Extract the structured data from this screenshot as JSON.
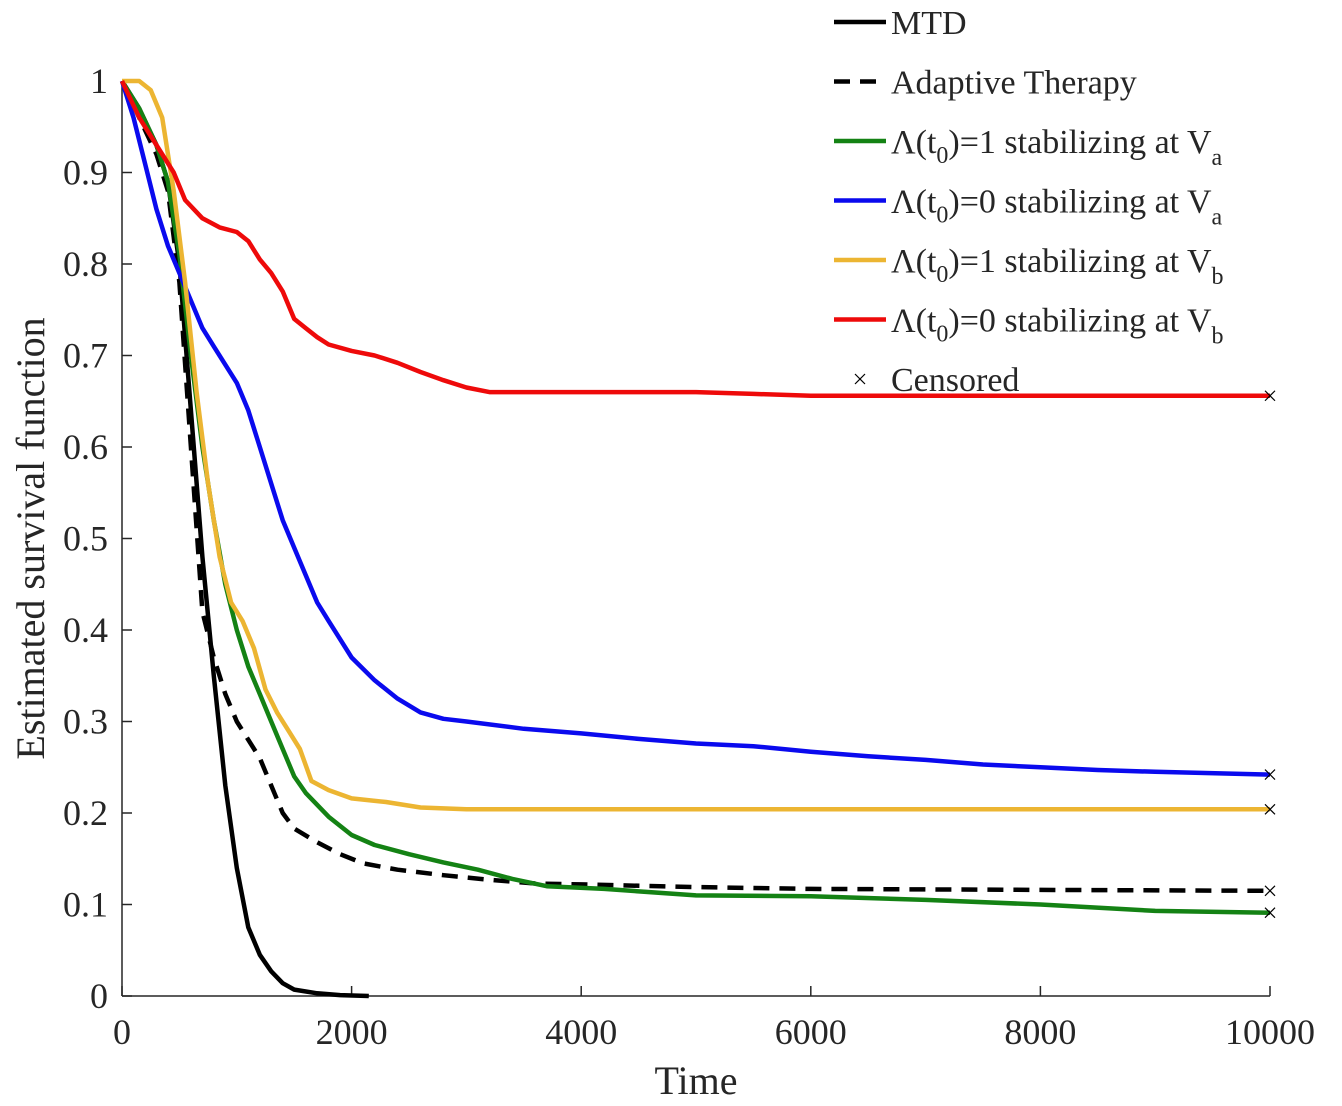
{
  "chart_data": {
    "type": "line",
    "xlabel": "Time",
    "ylabel": "Estimated survival function",
    "xlim": [
      0,
      10000
    ],
    "ylim": [
      0,
      1
    ],
    "xticks": [
      0,
      2000,
      4000,
      6000,
      8000,
      10000
    ],
    "xtick_labels": [
      "0",
      "2000",
      "4000",
      "6000",
      "8000",
      "10000"
    ],
    "yticks": [
      0,
      0.1,
      0.2,
      0.3,
      0.4,
      0.5,
      0.6,
      0.7,
      0.8,
      0.9,
      1
    ],
    "ytick_labels": [
      "0",
      "0.1",
      "0.2",
      "0.3",
      "0.4",
      "0.5",
      "0.6",
      "0.7",
      "0.8",
      "0.9",
      "1"
    ],
    "grid": false,
    "legend_position": "top-right",
    "series": [
      {
        "name": "MTD",
        "legend": {
          "pre": "MTD"
        },
        "color": "#000000",
        "dash": "solid",
        "points": [
          [
            0,
            1.0
          ],
          [
            150,
            0.97
          ],
          [
            300,
            0.93
          ],
          [
            400,
            0.89
          ],
          [
            500,
            0.8
          ],
          [
            600,
            0.64
          ],
          [
            700,
            0.48
          ],
          [
            800,
            0.35
          ],
          [
            900,
            0.23
          ],
          [
            1000,
            0.14
          ],
          [
            1100,
            0.075
          ],
          [
            1200,
            0.045
          ],
          [
            1300,
            0.027
          ],
          [
            1400,
            0.014
          ],
          [
            1500,
            0.007
          ],
          [
            1700,
            0.003
          ],
          [
            1900,
            0.001
          ],
          [
            2150,
            0.0
          ]
        ],
        "censored": false
      },
      {
        "name": "Adaptive Therapy",
        "legend": {
          "pre": "Adaptive Therapy"
        },
        "color": "#000000",
        "dash": "dashed",
        "points": [
          [
            0,
            1.0
          ],
          [
            150,
            0.96
          ],
          [
            300,
            0.92
          ],
          [
            400,
            0.88
          ],
          [
            500,
            0.78
          ],
          [
            600,
            0.6
          ],
          [
            700,
            0.42
          ],
          [
            800,
            0.37
          ],
          [
            900,
            0.33
          ],
          [
            1000,
            0.3
          ],
          [
            1100,
            0.28
          ],
          [
            1200,
            0.26
          ],
          [
            1300,
            0.23
          ],
          [
            1400,
            0.2
          ],
          [
            1500,
            0.183
          ],
          [
            1700,
            0.168
          ],
          [
            1900,
            0.155
          ],
          [
            2100,
            0.145
          ],
          [
            2400,
            0.138
          ],
          [
            2800,
            0.132
          ],
          [
            3200,
            0.127
          ],
          [
            3600,
            0.123
          ],
          [
            4000,
            0.122
          ],
          [
            5000,
            0.119
          ],
          [
            6000,
            0.117
          ],
          [
            8000,
            0.116
          ],
          [
            10000,
            0.115
          ]
        ],
        "censored": true
      },
      {
        "name": "Λ(t0)=1 stabilizing at Va",
        "legend": {
          "pre": "Λ(t",
          "sub1": "0",
          "mid": ")=1 stabilizing at V",
          "sub2": "a"
        },
        "color": "#148214",
        "dash": "solid",
        "points": [
          [
            0,
            1.0
          ],
          [
            150,
            0.97
          ],
          [
            300,
            0.93
          ],
          [
            400,
            0.89
          ],
          [
            500,
            0.81
          ],
          [
            600,
            0.7
          ],
          [
            700,
            0.6
          ],
          [
            800,
            0.52
          ],
          [
            900,
            0.45
          ],
          [
            1000,
            0.4
          ],
          [
            1100,
            0.36
          ],
          [
            1200,
            0.33
          ],
          [
            1300,
            0.3
          ],
          [
            1400,
            0.27
          ],
          [
            1500,
            0.24
          ],
          [
            1600,
            0.222
          ],
          [
            1800,
            0.196
          ],
          [
            2000,
            0.176
          ],
          [
            2200,
            0.165
          ],
          [
            2500,
            0.155
          ],
          [
            2800,
            0.146
          ],
          [
            3100,
            0.138
          ],
          [
            3400,
            0.128
          ],
          [
            3700,
            0.12
          ],
          [
            4200,
            0.117
          ],
          [
            5000,
            0.11
          ],
          [
            6000,
            0.109
          ],
          [
            7000,
            0.105
          ],
          [
            8000,
            0.1
          ],
          [
            9000,
            0.093
          ],
          [
            10000,
            0.091
          ]
        ],
        "censored": true
      },
      {
        "name": "Λ(t0)=0 stabilizing at Va",
        "legend": {
          "pre": "Λ(t",
          "sub1": "0",
          "mid": ")=0 stabilizing at V",
          "sub2": "a"
        },
        "color": "#0a0aee",
        "dash": "solid",
        "points": [
          [
            0,
            1.0
          ],
          [
            100,
            0.96
          ],
          [
            200,
            0.91
          ],
          [
            300,
            0.86
          ],
          [
            400,
            0.82
          ],
          [
            500,
            0.79
          ],
          [
            600,
            0.76
          ],
          [
            700,
            0.73
          ],
          [
            800,
            0.71
          ],
          [
            900,
            0.69
          ],
          [
            1000,
            0.67
          ],
          [
            1100,
            0.64
          ],
          [
            1200,
            0.6
          ],
          [
            1300,
            0.56
          ],
          [
            1400,
            0.52
          ],
          [
            1500,
            0.49
          ],
          [
            1600,
            0.46
          ],
          [
            1700,
            0.43
          ],
          [
            1800,
            0.41
          ],
          [
            2000,
            0.37
          ],
          [
            2200,
            0.345
          ],
          [
            2400,
            0.325
          ],
          [
            2600,
            0.31
          ],
          [
            2800,
            0.303
          ],
          [
            3000,
            0.3
          ],
          [
            3500,
            0.292
          ],
          [
            4000,
            0.287
          ],
          [
            4500,
            0.281
          ],
          [
            5000,
            0.276
          ],
          [
            5500,
            0.273
          ],
          [
            6000,
            0.267
          ],
          [
            6500,
            0.262
          ],
          [
            7000,
            0.258
          ],
          [
            7500,
            0.253
          ],
          [
            8000,
            0.25
          ],
          [
            8500,
            0.247
          ],
          [
            9000,
            0.245
          ],
          [
            10000,
            0.242
          ]
        ],
        "censored": true
      },
      {
        "name": "Λ(t0)=1 stabilizing at Vb",
        "legend": {
          "pre": "Λ(t",
          "sub1": "0",
          "mid": ")=1 stabilizing at V",
          "sub2": "b"
        },
        "color": "#ecb532",
        "dash": "solid",
        "points": [
          [
            0,
            1.0
          ],
          [
            150,
            1.0
          ],
          [
            250,
            0.99
          ],
          [
            350,
            0.96
          ],
          [
            450,
            0.88
          ],
          [
            550,
            0.78
          ],
          [
            650,
            0.66
          ],
          [
            750,
            0.56
          ],
          [
            850,
            0.48
          ],
          [
            950,
            0.43
          ],
          [
            1050,
            0.41
          ],
          [
            1150,
            0.38
          ],
          [
            1250,
            0.335
          ],
          [
            1350,
            0.31
          ],
          [
            1450,
            0.29
          ],
          [
            1550,
            0.27
          ],
          [
            1650,
            0.235
          ],
          [
            1800,
            0.225
          ],
          [
            2000,
            0.216
          ],
          [
            2300,
            0.212
          ],
          [
            2600,
            0.206
          ],
          [
            3000,
            0.204
          ],
          [
            4000,
            0.204
          ],
          [
            6000,
            0.204
          ],
          [
            8000,
            0.204
          ],
          [
            10000,
            0.204
          ]
        ],
        "censored": true
      },
      {
        "name": "Λ(t0)=0 stabilizing at Vb",
        "legend": {
          "pre": "Λ(t",
          "sub1": "0",
          "mid": ")=0 stabilizing at V",
          "sub2": "b"
        },
        "color": "#ee0a0a",
        "dash": "solid",
        "points": [
          [
            0,
            1.0
          ],
          [
            150,
            0.96
          ],
          [
            300,
            0.93
          ],
          [
            450,
            0.9
          ],
          [
            550,
            0.87
          ],
          [
            700,
            0.85
          ],
          [
            850,
            0.84
          ],
          [
            1000,
            0.835
          ],
          [
            1100,
            0.825
          ],
          [
            1200,
            0.805
          ],
          [
            1300,
            0.79
          ],
          [
            1400,
            0.77
          ],
          [
            1500,
            0.74
          ],
          [
            1600,
            0.73
          ],
          [
            1700,
            0.72
          ],
          [
            1800,
            0.712
          ],
          [
            2000,
            0.705
          ],
          [
            2200,
            0.7
          ],
          [
            2400,
            0.692
          ],
          [
            2600,
            0.682
          ],
          [
            2800,
            0.673
          ],
          [
            3000,
            0.665
          ],
          [
            3200,
            0.66
          ],
          [
            3600,
            0.66
          ],
          [
            4000,
            0.66
          ],
          [
            5000,
            0.66
          ],
          [
            5500,
            0.658
          ],
          [
            6000,
            0.656
          ],
          [
            8000,
            0.656
          ],
          [
            10000,
            0.656
          ]
        ],
        "censored": true
      }
    ],
    "censored_legend": "Censored"
  }
}
